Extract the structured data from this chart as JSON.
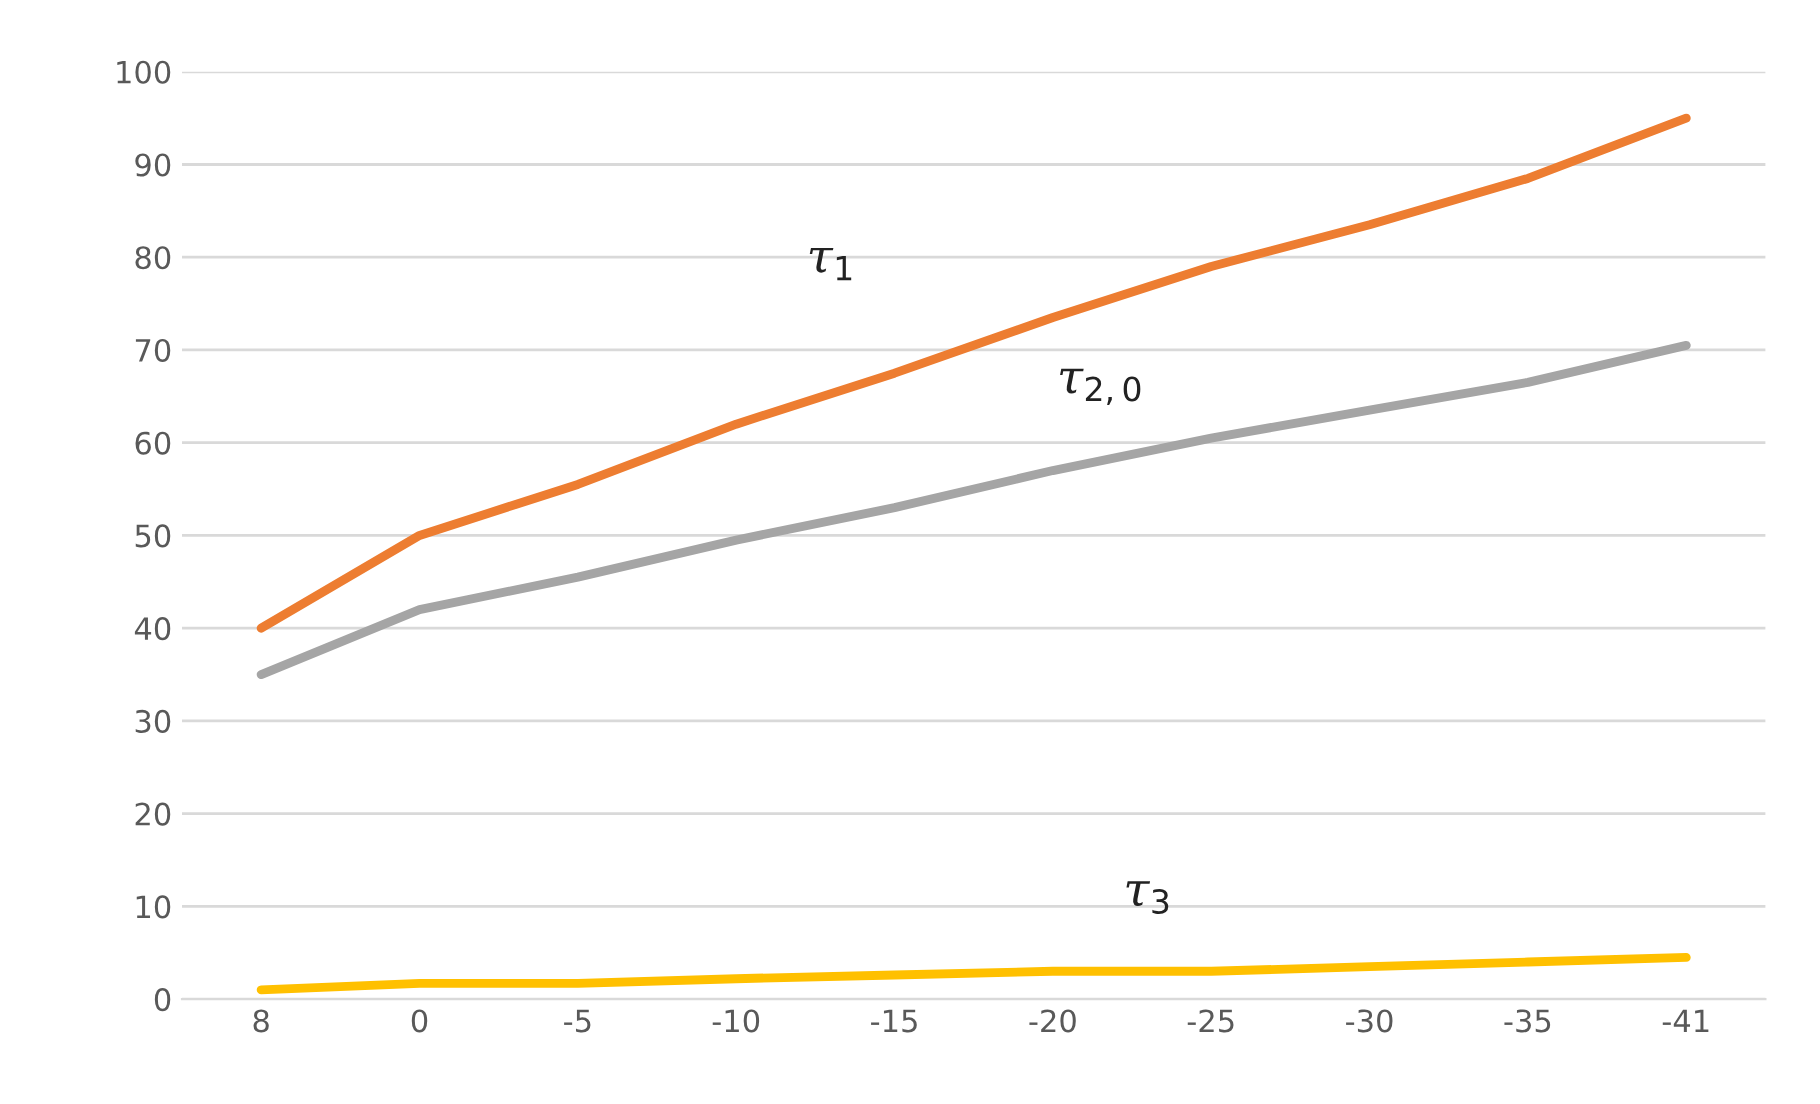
{
  "chart_data": {
    "type": "line",
    "categories": [
      "8",
      "0",
      "-5",
      "-10",
      "-15",
      "-20",
      "-25",
      "-30",
      "-35",
      "-41"
    ],
    "series": [
      {
        "name": "τ$_{1}$",
        "color": "#ed7d31",
        "values": [
          40,
          50,
          55.5,
          62,
          67.5,
          73.5,
          79,
          83.5,
          88.5,
          95
        ]
      },
      {
        "name": "τ$_{2,0}$",
        "color": "#a5a5a5",
        "values": [
          35,
          42,
          45.5,
          49.5,
          53,
          57,
          60.5,
          63.5,
          66.5,
          70.5
        ]
      },
      {
        "name": "τ$_{3}$",
        "color": "#ffc000",
        "values": [
          1,
          1.7,
          1.7,
          2.2,
          2.6,
          3,
          3,
          3.5,
          4,
          4.5
        ]
      }
    ],
    "ylim": [
      0,
      100
    ],
    "yticks": [
      0,
      10,
      20,
      30,
      40,
      50,
      60,
      70,
      80,
      90,
      100
    ],
    "grid": "y",
    "legend": false,
    "marker": "none",
    "line_style": "solid"
  }
}
